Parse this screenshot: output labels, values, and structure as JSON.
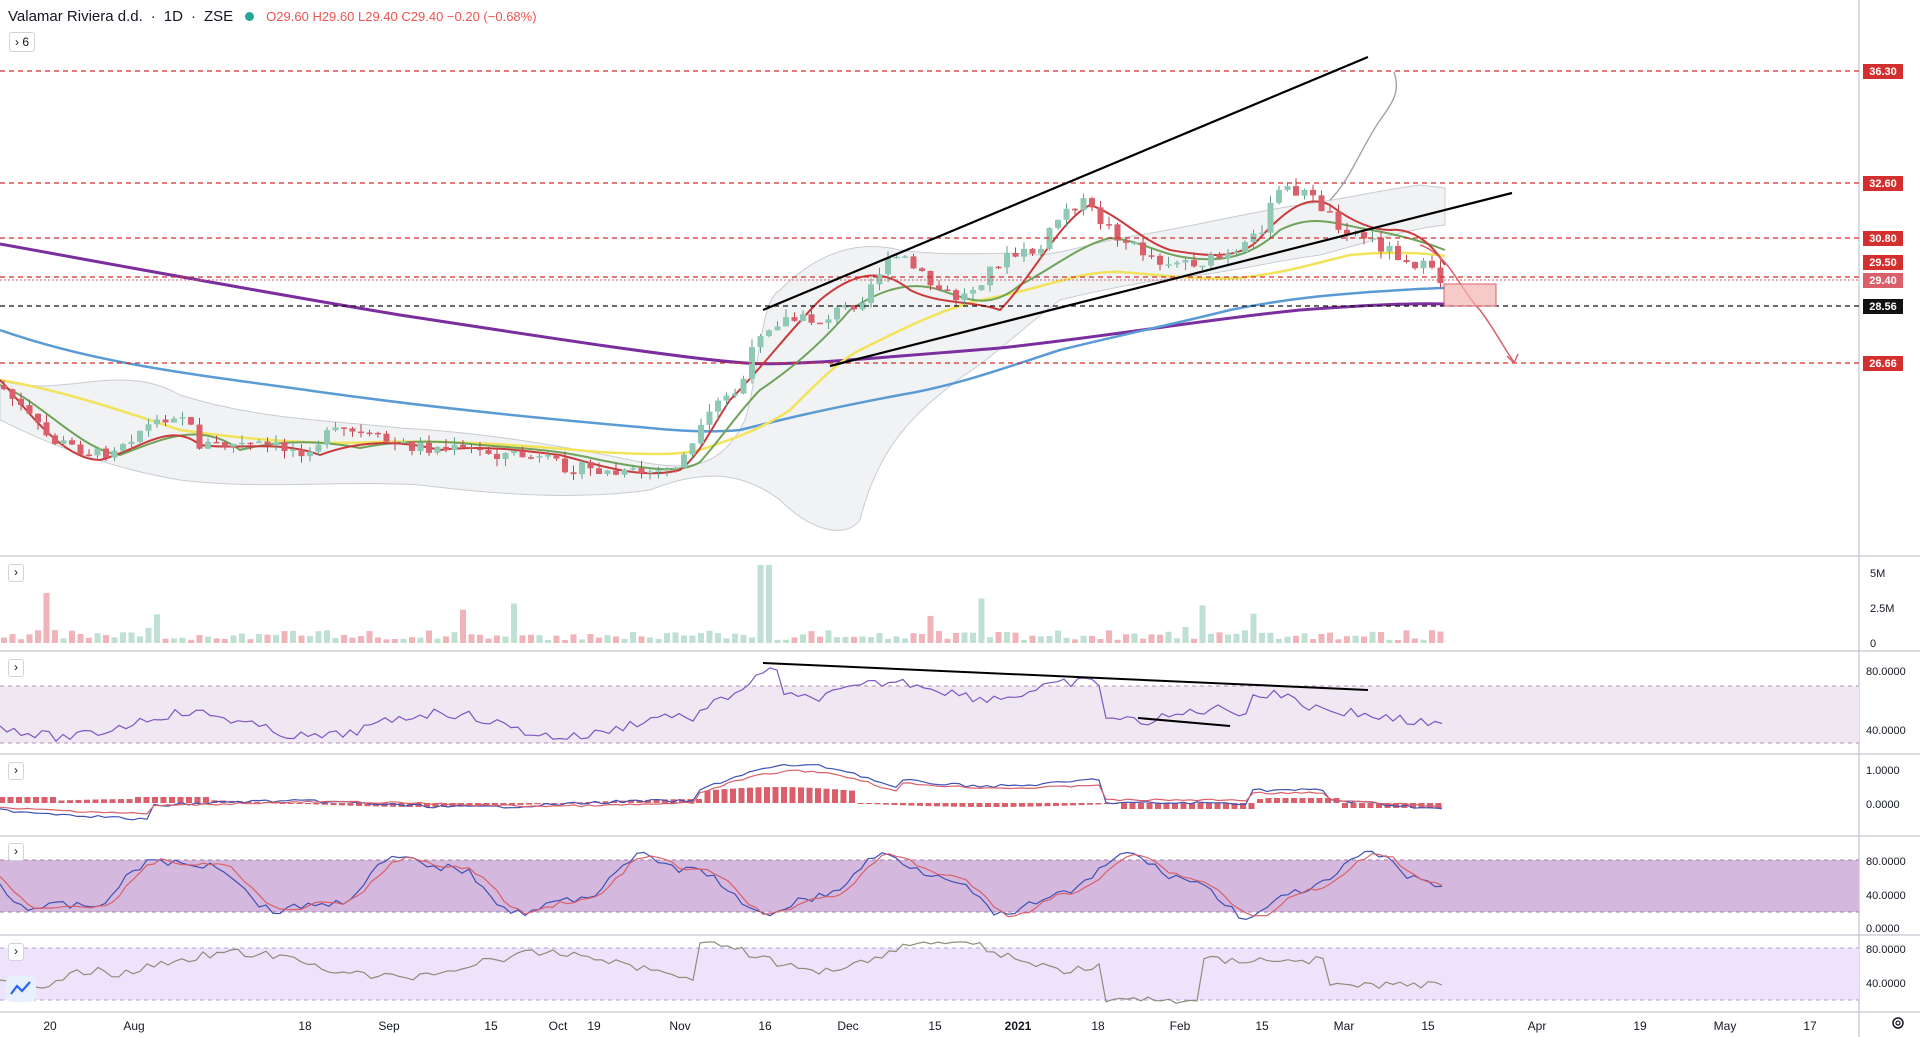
{
  "header": {
    "symbol": "Valamar Riviera d.d.",
    "interval": "1D",
    "exchange": "ZSE",
    "open": "O29.60",
    "high": "H29.60",
    "low": "L29.40",
    "close": "C29.40",
    "change": "−0.20 (−0.68%)",
    "indicators_collapsed_count": "6"
  },
  "colors": {
    "up": "#8fc9b3",
    "down": "#d9606a",
    "ma_fast": "#c93a3a",
    "ma_mid": "#6fa35a",
    "ma_slow": "#f2e35a",
    "ma_100": "#5b9bd5",
    "ma_200": "#7b2e9e",
    "trendline": "#000000",
    "level_line": "#d32f2f",
    "support_line": "#000000"
  },
  "chart_data": [
    {
      "type": "line",
      "name": "price-pane",
      "x_axis_labels": [
        "20",
        "Aug",
        "18",
        "Sep",
        "15",
        "Oct",
        "19",
        "Nov",
        "16",
        "Dec",
        "15",
        "2021",
        "18",
        "Feb",
        "15",
        "Mar",
        "15",
        "Apr",
        "19",
        "May",
        "17"
      ],
      "price_levels": [
        {
          "label": "36.30",
          "value": 36.3,
          "style": "dashed-red"
        },
        {
          "label": "32.60",
          "value": 32.6,
          "style": "dashed-red"
        },
        {
          "label": "30.80",
          "value": 30.8,
          "style": "dashed-red"
        },
        {
          "label": "29.50",
          "value": 29.5,
          "style": "dashed-red"
        },
        {
          "label": "29.40",
          "value": 29.4,
          "style": "last-price"
        },
        {
          "label": "28.56",
          "value": 28.56,
          "style": "dashed-black"
        },
        {
          "label": "26.66",
          "value": 26.66,
          "style": "dashed-red"
        }
      ],
      "last_price": 29.4
    },
    {
      "type": "bar",
      "name": "volume",
      "axis_labels": [
        "5M",
        "2.5M",
        "0"
      ]
    },
    {
      "type": "line",
      "name": "rsi",
      "axis_labels": [
        "80.0000",
        "40.0000"
      ]
    },
    {
      "type": "line",
      "name": "macd",
      "axis_labels": [
        "1.0000",
        "0.0000"
      ]
    },
    {
      "type": "line",
      "name": "stochastic",
      "axis_labels": [
        "80.0000",
        "40.0000",
        "0.0000"
      ]
    },
    {
      "type": "line",
      "name": "rsi-2",
      "axis_labels": [
        "80.0000",
        "40.0000"
      ]
    }
  ]
}
